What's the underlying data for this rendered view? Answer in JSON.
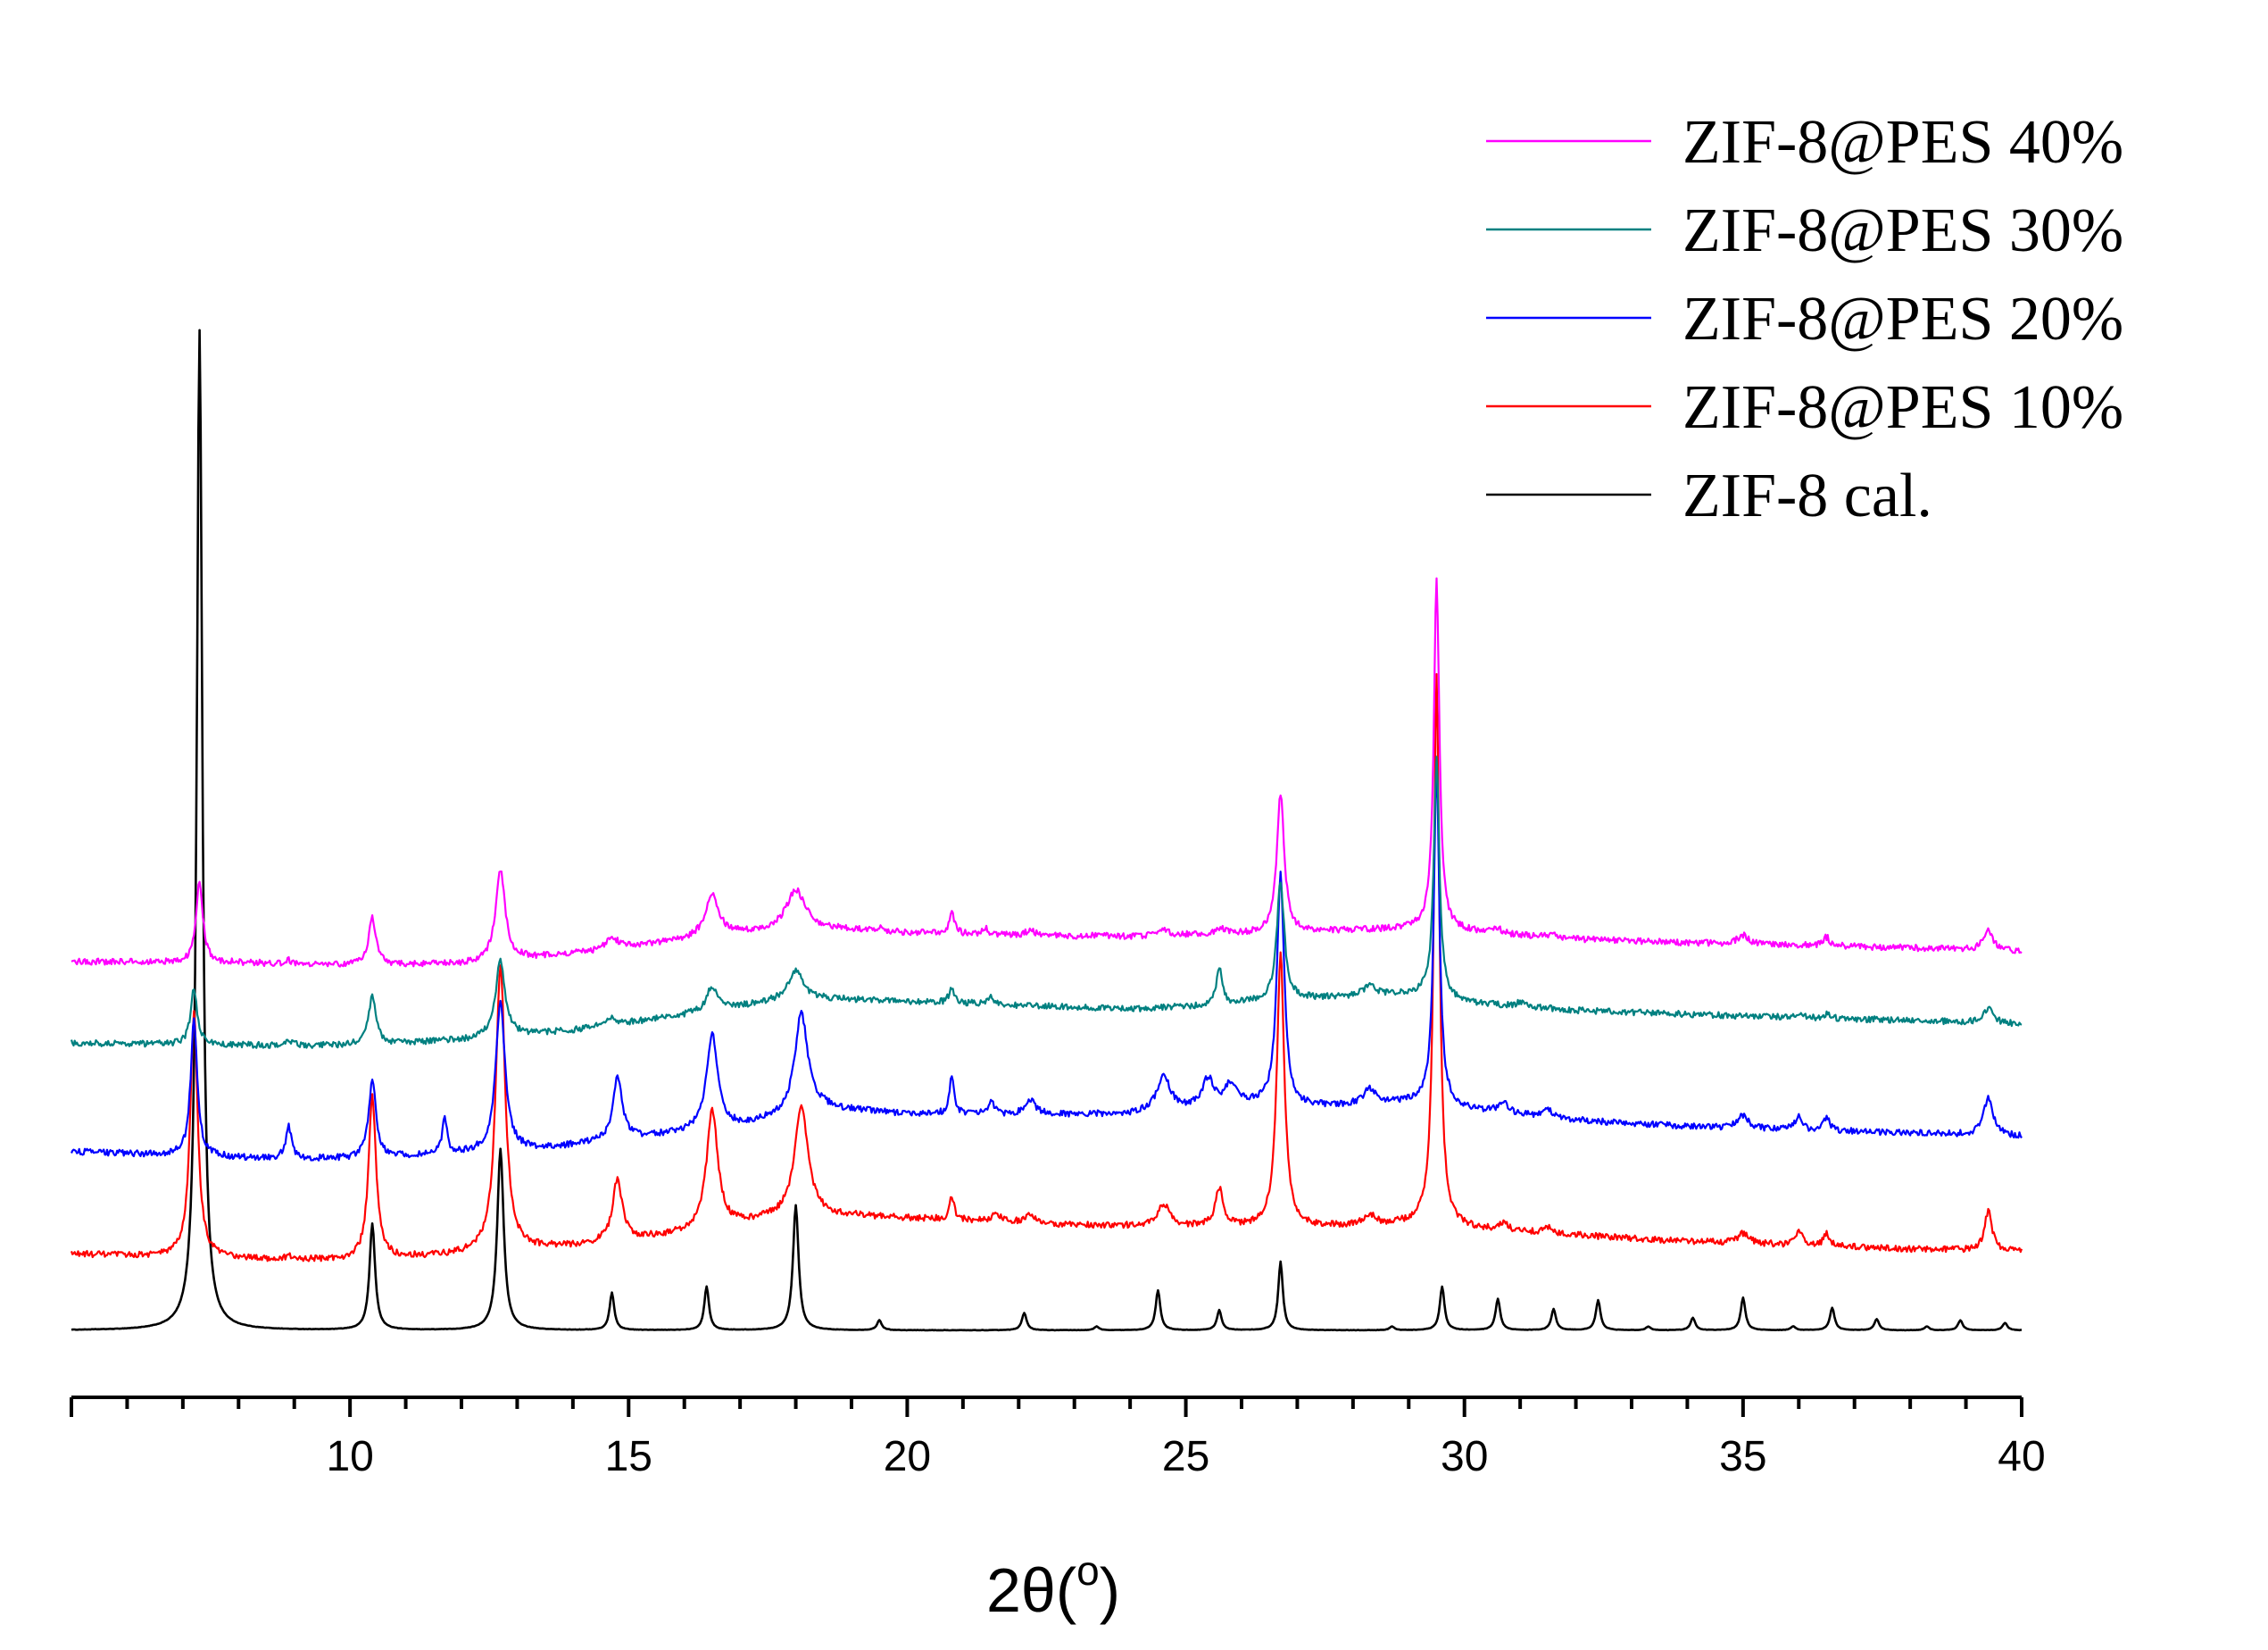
{
  "chart_data": {
    "type": "line",
    "title": "",
    "xlabel": "2θ(o)",
    "xlabel_main": "2θ(",
    "xlabel_degree": "o",
    "xlabel_close": ")",
    "ylabel": "",
    "xlim": [
      5,
      40
    ],
    "x_ticks": [
      10,
      15,
      20,
      25,
      30,
      35,
      40
    ],
    "x_tick_labels": [
      "10",
      "15",
      "20",
      "25",
      "30",
      "35",
      "40"
    ],
    "x_minor_step": 1,
    "y_axis_shown": false,
    "legend_position": "top-right",
    "series": [
      {
        "name": "ZIF-8@PES 40%",
        "color": "#ff00ff",
        "offset": 285,
        "baseline": [
          [
            5,
            10
          ],
          [
            8,
            9
          ],
          [
            10,
            7
          ],
          [
            12,
            8
          ],
          [
            14,
            16
          ],
          [
            16,
            27
          ],
          [
            18,
            37
          ],
          [
            20,
            33
          ],
          [
            22,
            31
          ],
          [
            24,
            30
          ],
          [
            26,
            32
          ],
          [
            28,
            35
          ],
          [
            29.3,
            36
          ],
          [
            30,
            34
          ],
          [
            32,
            28
          ],
          [
            34,
            25
          ],
          [
            36,
            23
          ],
          [
            38,
            21
          ],
          [
            40,
            18
          ]
        ],
        "peaks": [
          [
            7.3,
            65,
            0.07
          ],
          [
            8.9,
            3,
            0.06
          ],
          [
            10.4,
            38,
            0.08
          ],
          [
            12.7,
            73,
            0.1
          ],
          [
            14.7,
            10,
            0.12
          ],
          [
            16.5,
            33,
            0.15
          ],
          [
            18.0,
            30,
            0.2
          ],
          [
            19.5,
            3,
            0.1
          ],
          [
            20.8,
            18,
            0.05
          ],
          [
            21.4,
            5,
            0.06
          ],
          [
            22.2,
            4,
            0.1
          ],
          [
            24.6,
            4,
            0.15
          ],
          [
            25.6,
            5,
            0.1
          ],
          [
            26.7,
            112,
            0.08
          ],
          [
            29.5,
            280,
            0.06
          ],
          [
            30.6,
            4,
            0.08
          ],
          [
            31.6,
            3,
            0.08
          ],
          [
            35.0,
            7,
            0.12
          ],
          [
            36.5,
            7,
            0.07
          ],
          [
            39.4,
            17,
            0.1
          ]
        ]
      },
      {
        "name": "ZIF-8@PES 30%",
        "color": "#008080",
        "offset": 220,
        "baseline": [
          [
            5,
            10
          ],
          [
            8,
            8
          ],
          [
            10,
            8
          ],
          [
            12,
            12
          ],
          [
            14,
            20
          ],
          [
            16,
            32
          ],
          [
            18,
            46
          ],
          [
            20,
            43
          ],
          [
            22,
            40
          ],
          [
            24,
            37
          ],
          [
            25.5,
            40
          ],
          [
            27,
            45
          ],
          [
            29.3,
            49
          ],
          [
            30,
            42
          ],
          [
            32,
            36
          ],
          [
            34,
            33
          ],
          [
            36,
            30
          ],
          [
            38,
            28
          ],
          [
            40,
            25
          ]
        ],
        "peaks": [
          [
            7.2,
            45,
            0.07
          ],
          [
            8.9,
            5,
            0.06
          ],
          [
            10.4,
            38,
            0.08
          ],
          [
            12.7,
            62,
            0.1
          ],
          [
            14.7,
            5,
            0.12
          ],
          [
            16.5,
            20,
            0.12
          ],
          [
            18.0,
            22,
            0.15
          ],
          [
            20.8,
            12,
            0.06
          ],
          [
            21.5,
            6,
            0.08
          ],
          [
            25.6,
            30,
            0.06
          ],
          [
            26.7,
            95,
            0.08
          ],
          [
            28.3,
            8,
            0.15
          ],
          [
            29.5,
            190,
            0.06
          ],
          [
            31.0,
            3,
            0.08
          ],
          [
            36.0,
            3,
            0.08
          ],
          [
            36.5,
            4,
            0.07
          ],
          [
            39.4,
            12,
            0.1
          ]
        ]
      },
      {
        "name": "ZIF-8@PES 20%",
        "color": "#0000ff",
        "offset": 135,
        "baseline": [
          [
            5,
            8
          ],
          [
            8,
            3
          ],
          [
            10,
            2
          ],
          [
            12,
            6
          ],
          [
            13.5,
            10
          ],
          [
            15,
            18
          ],
          [
            17,
            28
          ],
          [
            18.5,
            42
          ],
          [
            20,
            38
          ],
          [
            22,
            37
          ],
          [
            24,
            38
          ],
          [
            26,
            46
          ],
          [
            27,
            43
          ],
          [
            28,
            45
          ],
          [
            29.3,
            48
          ],
          [
            30,
            42
          ],
          [
            32,
            33
          ],
          [
            34,
            28
          ],
          [
            36,
            25
          ],
          [
            38,
            23
          ],
          [
            40,
            20
          ]
        ],
        "peaks": [
          [
            7.2,
            110,
            0.07
          ],
          [
            8.9,
            25,
            0.06
          ],
          [
            10.4,
            62,
            0.08
          ],
          [
            11.7,
            30,
            0.05
          ],
          [
            12.7,
            120,
            0.1
          ],
          [
            14.8,
            50,
            0.1
          ],
          [
            16.5,
            75,
            0.12
          ],
          [
            18.1,
            80,
            0.14
          ],
          [
            20.8,
            30,
            0.05
          ],
          [
            21.5,
            10,
            0.07
          ],
          [
            22.2,
            12,
            0.12
          ],
          [
            24.6,
            28,
            0.14
          ],
          [
            25.4,
            22,
            0.12
          ],
          [
            25.8,
            15,
            0.12
          ],
          [
            26.7,
            185,
            0.08
          ],
          [
            28.3,
            12,
            0.12
          ],
          [
            29.5,
            270,
            0.06
          ],
          [
            30.7,
            8,
            0.1
          ],
          [
            31.5,
            6,
            0.1
          ],
          [
            35.0,
            10,
            0.12
          ],
          [
            36.0,
            12,
            0.07
          ],
          [
            36.5,
            10,
            0.07
          ],
          [
            39.4,
            30,
            0.1
          ]
        ]
      },
      {
        "name": "ZIF-8@PES 10%",
        "color": "#ff0000",
        "offset": 55,
        "baseline": [
          [
            5,
            6
          ],
          [
            8,
            2
          ],
          [
            10,
            1
          ],
          [
            12,
            5
          ],
          [
            14,
            12
          ],
          [
            16,
            22
          ],
          [
            17.5,
            33
          ],
          [
            19,
            36
          ],
          [
            21,
            33
          ],
          [
            23,
            29
          ],
          [
            25,
            28
          ],
          [
            27,
            27
          ],
          [
            29.3,
            30
          ],
          [
            30,
            26
          ],
          [
            32,
            21
          ],
          [
            34,
            16
          ],
          [
            36,
            13
          ],
          [
            38,
            10
          ],
          [
            40,
            8
          ]
        ],
        "peaks": [
          [
            7.2,
            195,
            0.08
          ],
          [
            8.9,
            2,
            0.06
          ],
          [
            10.4,
            130,
            0.08
          ],
          [
            12.7,
            230,
            0.1
          ],
          [
            14.8,
            50,
            0.1
          ],
          [
            16.5,
            95,
            0.12
          ],
          [
            18.1,
            90,
            0.15
          ],
          [
            20.8,
            18,
            0.05
          ],
          [
            21.6,
            6,
            0.08
          ],
          [
            22.2,
            8,
            0.1
          ],
          [
            24.6,
            18,
            0.12
          ],
          [
            25.6,
            30,
            0.08
          ],
          [
            26.7,
            220,
            0.08
          ],
          [
            28.3,
            8,
            0.12
          ],
          [
            29.5,
            440,
            0.06
          ],
          [
            30.7,
            6,
            0.1
          ],
          [
            31.5,
            5,
            0.1
          ],
          [
            35.0,
            8,
            0.12
          ],
          [
            36.0,
            12,
            0.07
          ],
          [
            36.5,
            10,
            0.07
          ],
          [
            39.4,
            32,
            0.08
          ]
        ]
      },
      {
        "name": "ZIF-8 cal.",
        "color": "#000000",
        "offset": 0,
        "baseline": [
          [
            5,
            0
          ],
          [
            40,
            0
          ]
        ],
        "peaks": [
          [
            7.3,
            800,
            0.06
          ],
          [
            10.4,
            85,
            0.06
          ],
          [
            12.7,
            145,
            0.07
          ],
          [
            14.7,
            30,
            0.05
          ],
          [
            16.4,
            35,
            0.05
          ],
          [
            18.0,
            100,
            0.06
          ],
          [
            19.5,
            8,
            0.05
          ],
          [
            22.1,
            14,
            0.05
          ],
          [
            23.4,
            3,
            0.05
          ],
          [
            24.5,
            32,
            0.05
          ],
          [
            25.6,
            16,
            0.05
          ],
          [
            26.7,
            55,
            0.05
          ],
          [
            28.7,
            3,
            0.05
          ],
          [
            29.6,
            35,
            0.05
          ],
          [
            30.6,
            25,
            0.05
          ],
          [
            31.6,
            17,
            0.05
          ],
          [
            32.4,
            24,
            0.05
          ],
          [
            33.3,
            3,
            0.05
          ],
          [
            34.1,
            10,
            0.05
          ],
          [
            35.0,
            26,
            0.05
          ],
          [
            35.9,
            3,
            0.05
          ],
          [
            36.6,
            18,
            0.05
          ],
          [
            37.4,
            9,
            0.05
          ],
          [
            38.3,
            3,
            0.05
          ],
          [
            38.9,
            8,
            0.05
          ],
          [
            39.7,
            6,
            0.05
          ]
        ]
      }
    ]
  }
}
